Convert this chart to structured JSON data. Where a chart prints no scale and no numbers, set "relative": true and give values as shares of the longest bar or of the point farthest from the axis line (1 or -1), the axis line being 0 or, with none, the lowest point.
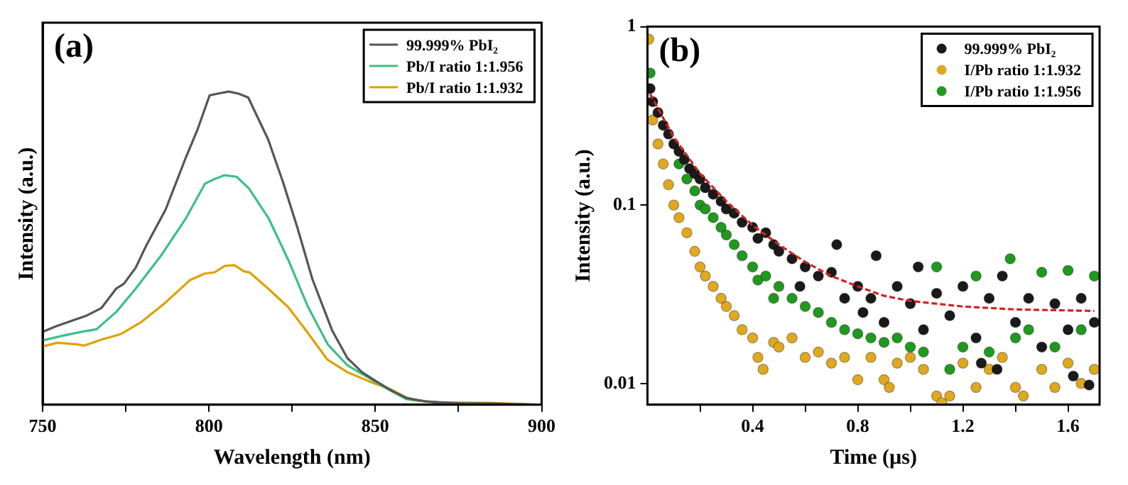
{
  "chart_data": [
    {
      "type": "line",
      "relative": true,
      "xlabel": "Wavelength (nm)",
      "ylabel": "Intensity (a.u.)",
      "annotations": [
        "(a)"
      ],
      "xlim": [
        750,
        900
      ],
      "xticks": [
        750,
        {
          "value": 775,
          "label": null
        },
        800,
        {
          "value": 825,
          "label": null
        },
        850,
        {
          "value": 875,
          "label": null
        },
        900
      ],
      "legend": "top right",
      "marker": "none",
      "line_style": "solid",
      "series": [
        {
          "name": "99.999% PbI₂",
          "color": "#555555",
          "x": [
            750,
            754.4,
            763.3,
            767.7,
            772.2,
            774.4,
            778,
            781,
            787,
            793,
            796.5,
            800.2,
            802.4,
            806,
            809,
            811.8,
            817.8,
            822.2,
            826.6,
            831.1,
            837,
            841.6,
            846,
            850.4,
            854.9,
            859.3,
            865.2,
            877,
            884.4,
            900
          ],
          "values": [
            0.233,
            0.252,
            0.285,
            0.309,
            0.372,
            0.386,
            0.438,
            0.505,
            0.624,
            0.788,
            0.877,
            0.988,
            0.993,
            1,
            0.993,
            0.981,
            0.847,
            0.713,
            0.565,
            0.401,
            0.238,
            0.149,
            0.104,
            0.074,
            0.045,
            0.022,
            0.01,
            0.004,
            0.004,
            0
          ]
        },
        {
          "name": "Pb/I ratio 1:1.956",
          "color": "#3dbf85",
          "x": [
            750,
            755.9,
            761.8,
            766.2,
            772.2,
            778,
            785.5,
            793,
            798.8,
            801.7,
            804.7,
            808.3,
            812,
            818,
            823.9,
            829.8,
            835.7,
            841.6,
            847.5,
            853.4,
            859.3,
            869.6,
            884.4,
            900
          ],
          "values": [
            0.205,
            0.22,
            0.233,
            0.241,
            0.297,
            0.371,
            0.475,
            0.594,
            0.706,
            0.721,
            0.733,
            0.728,
            0.691,
            0.594,
            0.461,
            0.312,
            0.193,
            0.126,
            0.089,
            0.052,
            0.018,
            0.006,
            0.003,
            0
          ]
        },
        {
          "name": "Pb/I ratio 1:1.932",
          "color": "#e0a000",
          "x": [
            750,
            754.4,
            760.3,
            762.6,
            767.7,
            773.6,
            779.5,
            787,
            794.3,
            798.8,
            801.7,
            804.7,
            807.6,
            810.5,
            812.3,
            817.8,
            823.8,
            829.7,
            835.6,
            841.6,
            849,
            854.9,
            860.8,
            869.6,
            884.4,
            900
          ],
          "values": [
            0.186,
            0.198,
            0.193,
            0.189,
            0.208,
            0.226,
            0.263,
            0.327,
            0.398,
            0.419,
            0.423,
            0.443,
            0.446,
            0.426,
            0.422,
            0.371,
            0.312,
            0.23,
            0.144,
            0.104,
            0.071,
            0.048,
            0.015,
            0.007,
            0.006,
            0
          ]
        }
      ]
    },
    {
      "type": "scatter",
      "xlabel": "Time (µs)",
      "ylabel": "Intensity (a.u.)",
      "annotations": [
        "(b)"
      ],
      "log": "y",
      "xlim": [
        0,
        1.72
      ],
      "xticks": [
        {
          "value": 0.2,
          "label": null
        },
        0.4,
        {
          "value": 0.6,
          "label": null
        },
        0.8,
        {
          "value": 1,
          "label": null
        },
        1.2,
        {
          "value": 1.4,
          "label": null
        },
        1.6
      ],
      "ylim": [
        0.0076,
        1
      ],
      "yticks": [
        0.01,
        0.1,
        1
      ],
      "legend": "top right",
      "marker": "circle",
      "series": [
        {
          "name": "99.999% PbI₂",
          "color": "#1a1a1a",
          "x": [
            0.01,
            0.02,
            0.04,
            0.06,
            0.08,
            0.1,
            0.12,
            0.14,
            0.16,
            0.18,
            0.2,
            0.22,
            0.25,
            0.28,
            0.3,
            0.33,
            0.36,
            0.4,
            0.42,
            0.45,
            0.48,
            0.5,
            0.55,
            0.58,
            0.6,
            0.65,
            0.7,
            0.72,
            0.75,
            0.8,
            0.82,
            0.85,
            0.87,
            0.9,
            0.95,
            1,
            1.03,
            1.05,
            1.1,
            1.15,
            1.2,
            1.25,
            1.27,
            1.3,
            1.33,
            1.35,
            1.4,
            1.45,
            1.5,
            1.55,
            1.6,
            1.62,
            1.65,
            1.68,
            1.7
          ],
          "values": [
            0.45,
            0.38,
            0.33,
            0.28,
            0.25,
            0.22,
            0.2,
            0.18,
            0.16,
            0.15,
            0.14,
            0.125,
            0.115,
            0.105,
            0.095,
            0.09,
            0.08,
            0.075,
            0.065,
            0.07,
            0.06,
            0.055,
            0.05,
            0.035,
            0.045,
            0.04,
            0.042,
            0.06,
            0.03,
            0.035,
            0.025,
            0.03,
            0.052,
            0.022,
            0.035,
            0.028,
            0.045,
            0.02,
            0.032,
            0.024,
            0.035,
            0.018,
            0.013,
            0.03,
            0.012,
            0.04,
            0.022,
            0.03,
            0.016,
            0.028,
            0.02,
            0.011,
            0.03,
            0.0098,
            0.022
          ]
        },
        {
          "name": "I/Pb ratio 1:1.932",
          "color": "#e0a820",
          "x": [
            0.005,
            0.02,
            0.04,
            0.06,
            0.08,
            0.1,
            0.12,
            0.15,
            0.18,
            0.2,
            0.22,
            0.25,
            0.28,
            0.3,
            0.33,
            0.36,
            0.4,
            0.42,
            0.44,
            0.48,
            0.5,
            0.55,
            0.6,
            0.65,
            0.7,
            0.75,
            0.8,
            0.85,
            0.9,
            0.92,
            0.95,
            1,
            1.05,
            1.1,
            1.12,
            1.15,
            1.2,
            1.25,
            1.3,
            1.35,
            1.4,
            1.43,
            1.5,
            1.55,
            1.6,
            1.65,
            1.7
          ],
          "values": [
            0.85,
            0.3,
            0.22,
            0.17,
            0.13,
            0.1,
            0.085,
            0.07,
            0.055,
            0.045,
            0.04,
            0.035,
            0.03,
            0.027,
            0.024,
            0.02,
            0.018,
            0.014,
            0.012,
            0.017,
            0.016,
            0.018,
            0.014,
            0.015,
            0.013,
            0.014,
            0.0105,
            0.014,
            0.0105,
            0.0095,
            0.013,
            0.014,
            0.012,
            0.0085,
            0.0078,
            0.0085,
            0.013,
            0.0095,
            0.012,
            0.014,
            0.0095,
            0.0085,
            0.012,
            0.0095,
            0.013,
            0.01,
            0.012
          ]
        },
        {
          "name": "I/Pb ratio 1:1.956",
          "color": "#1f9a1f",
          "x": [
            0.01,
            0.03,
            0.05,
            0.08,
            0.1,
            0.12,
            0.15,
            0.18,
            0.2,
            0.22,
            0.25,
            0.28,
            0.3,
            0.33,
            0.36,
            0.4,
            0.42,
            0.45,
            0.48,
            0.5,
            0.55,
            0.6,
            0.65,
            0.7,
            0.75,
            0.8,
            0.85,
            0.9,
            0.95,
            1,
            1.05,
            1.1,
            1.15,
            1.2,
            1.25,
            1.3,
            1.38,
            1.4,
            1.45,
            1.5,
            1.55,
            1.6,
            1.65,
            1.7
          ],
          "values": [
            0.55,
            null,
            null,
            null,
            null,
            0.17,
            0.14,
            0.12,
            0.1,
            0.095,
            0.085,
            0.075,
            0.068,
            0.06,
            0.052,
            0.045,
            0.038,
            0.04,
            0.03,
            0.035,
            0.03,
            0.027,
            0.025,
            0.022,
            0.02,
            0.019,
            0.018,
            0.017,
            0.018,
            0.016,
            0.015,
            0.045,
            0.012,
            0.016,
            0.04,
            0.015,
            0.05,
            0.018,
            0.02,
            0.042,
            0.016,
            0.043,
            0.02,
            0.04
          ]
        },
        {
          "type": "line",
          "color": "#d42020",
          "line_style": "dashed",
          "marker": "none",
          "x": [
            0.01,
            0.1,
            0.2,
            0.3,
            0.4,
            0.5,
            0.6,
            0.7,
            0.8,
            0.9,
            1,
            1.2,
            1.4,
            1.7
          ],
          "values": [
            0.42,
            0.24,
            0.15,
            0.105,
            0.077,
            0.06,
            0.048,
            0.04,
            0.035,
            0.031,
            0.029,
            0.027,
            0.026,
            0.0255
          ]
        }
      ]
    }
  ]
}
